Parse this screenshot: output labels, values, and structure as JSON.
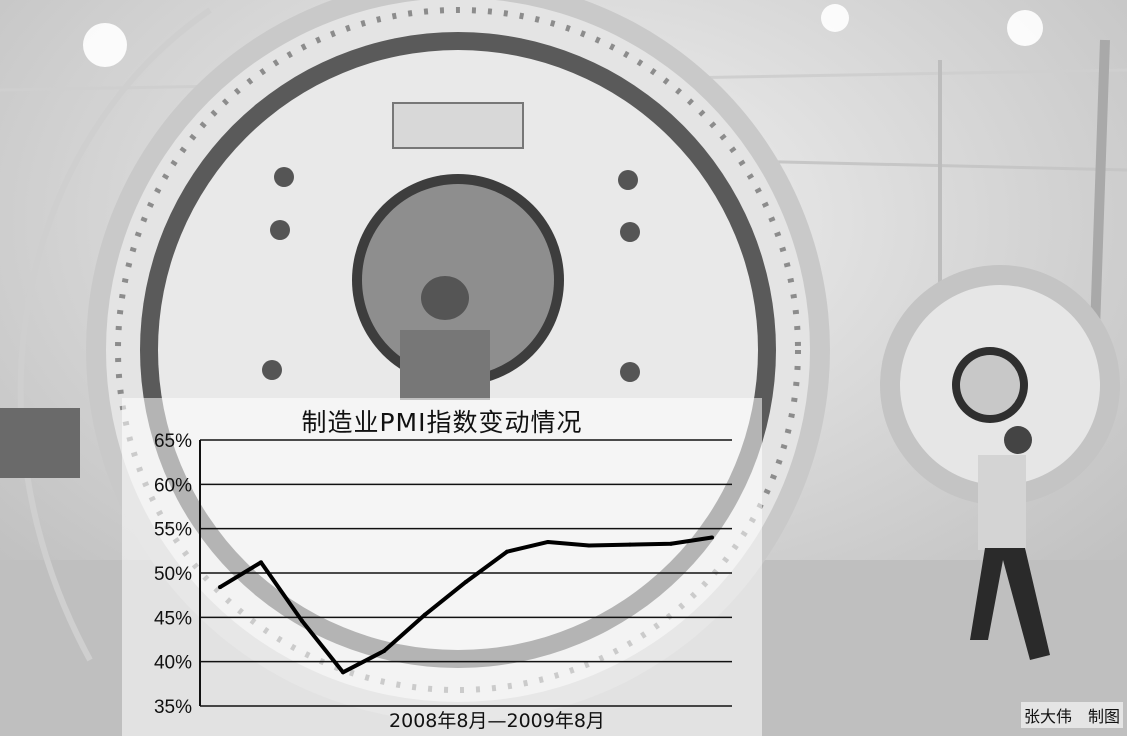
{
  "chart_data": {
    "type": "line",
    "title": "制造业PMI指数变动情况",
    "xlabel": "2008年8月—2009年8月",
    "ylabel": "",
    "ylim": [
      35,
      65
    ],
    "yticks": [
      "65%",
      "60%",
      "55%",
      "50%",
      "45%",
      "40%",
      "35%"
    ],
    "ytick_values": [
      65,
      60,
      55,
      50,
      45,
      40,
      35
    ],
    "grid": "horizontal",
    "x": [
      "2008-08",
      "2008-09",
      "2008-10",
      "2008-11",
      "2008-12",
      "2009-01",
      "2009-02",
      "2009-03",
      "2009-04",
      "2009-05",
      "2009-06",
      "2009-07",
      "2009-08"
    ],
    "series": [
      {
        "values": [
          48.4,
          51.2,
          44.6,
          38.8,
          41.2,
          45.3,
          49.0,
          52.4,
          53.5,
          53.1,
          53.2,
          53.3,
          54.0
        ]
      }
    ],
    "line_color": "#000000"
  },
  "credit": "张大伟　制图"
}
